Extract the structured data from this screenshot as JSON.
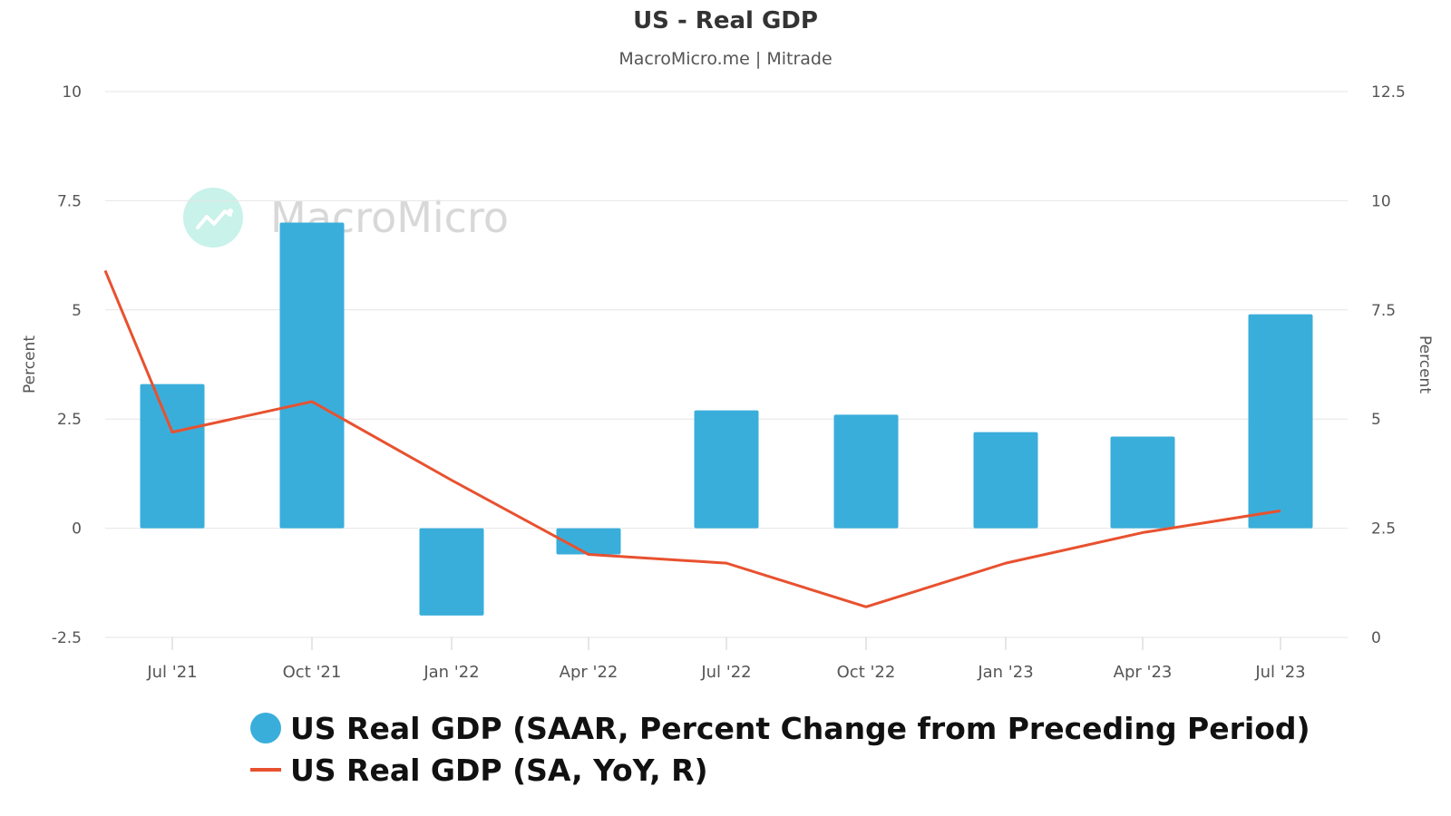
{
  "header": {
    "title": "US - Real GDP",
    "subtitle": "MacroMicro.me | Mitrade"
  },
  "watermark": {
    "text": "MacroMicro",
    "icon": "macromicro-logo-icon"
  },
  "colors": {
    "bar": "#3aaedb",
    "line": "#e8512f",
    "grid": "#e6e6e6",
    "axis_text": "#555555"
  },
  "chart_data": {
    "type": "bar",
    "title": "US - Real GDP",
    "subtitle": "MacroMicro.me | Mitrade",
    "categories": [
      "Jul '21",
      "Oct '21",
      "Jan '22",
      "Apr '22",
      "Jul '22",
      "Oct '22",
      "Jan '23",
      "Apr '23",
      "Jul '23"
    ],
    "series": [
      {
        "name": "US Real GDP (SAAR, Percent Change from Preceding Period)",
        "type": "bar",
        "axis": "left",
        "values": [
          3.3,
          7.0,
          -2.0,
          -0.6,
          2.7,
          2.6,
          2.2,
          2.1,
          4.9
        ]
      },
      {
        "name": "US Real GDP (SA, YoY, R)",
        "type": "line",
        "axis": "right",
        "start_value": 8.4,
        "values": [
          4.7,
          5.4,
          3.6,
          1.9,
          1.7,
          0.7,
          1.7,
          2.4,
          2.9
        ]
      }
    ],
    "y_left": {
      "label": "Percent",
      "min": -2.5,
      "max": 10,
      "ticks": [
        "-2.5",
        "0",
        "2.5",
        "5",
        "7.5",
        "10"
      ]
    },
    "y_right": {
      "label": "Percent",
      "min": 0,
      "max": 12.5,
      "ticks": [
        "0",
        "2.5",
        "5",
        "7.5",
        "10",
        "12.5"
      ]
    },
    "grid": true,
    "legend_position": "bottom-left"
  }
}
